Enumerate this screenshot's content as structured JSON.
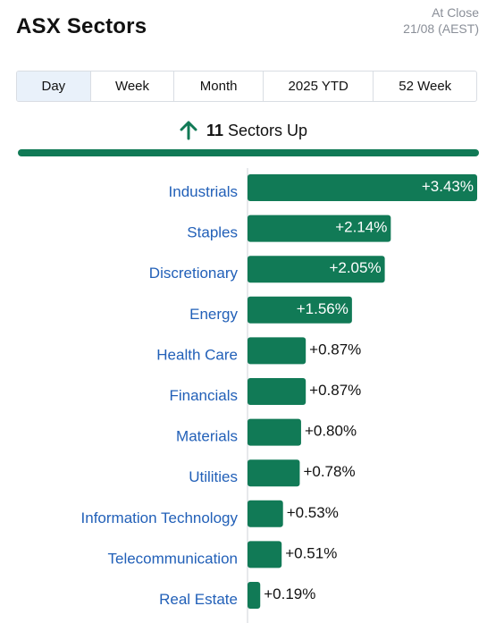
{
  "header": {
    "title": "ASX Sectors",
    "status_line1": "At Close",
    "status_line2": "21/08 (AEST)"
  },
  "tabs": [
    {
      "label": "Day",
      "active": true
    },
    {
      "label": "Week",
      "active": false
    },
    {
      "label": "Month",
      "active": false
    },
    {
      "label": "2025 YTD",
      "active": false
    },
    {
      "label": "52 Week",
      "active": false
    }
  ],
  "summary": {
    "count": "11",
    "label": "Sectors Up",
    "icon": "arrow-up-icon"
  },
  "colors": {
    "bar": "#117a56",
    "category_text": "#2260b8",
    "axis": "#cfd3d8"
  },
  "chart_data": {
    "type": "bar",
    "orientation": "horizontal",
    "categories": [
      "Industrials",
      "Staples",
      "Discretionary",
      "Energy",
      "Health Care",
      "Financials",
      "Materials",
      "Utilities",
      "Information Technology",
      "Telecommunication",
      "Real Estate"
    ],
    "values": [
      3.43,
      2.14,
      2.05,
      1.56,
      0.87,
      0.87,
      0.8,
      0.78,
      0.53,
      0.51,
      0.19
    ],
    "labels": [
      "+3.43%",
      "+2.14%",
      "+2.05%",
      "+1.56%",
      "+0.87%",
      "+0.87%",
      "+0.80%",
      "+0.78%",
      "+0.53%",
      "+0.51%",
      "+0.19%"
    ]
  }
}
